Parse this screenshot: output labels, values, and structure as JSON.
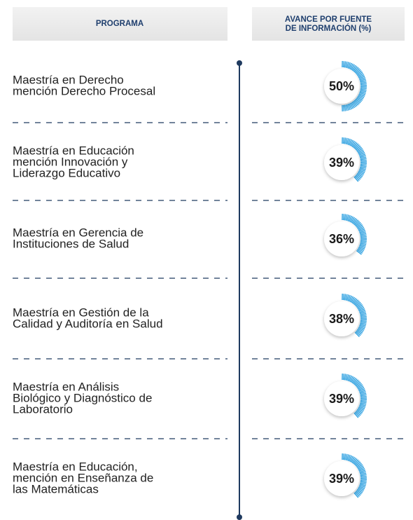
{
  "header": {
    "program": "PROGRAMA",
    "progress": [
      "AVANCE POR FUENTE",
      "DE INFORMACIÓN (%)"
    ]
  },
  "rows": [
    {
      "program": [
        "Maestría en Derecho",
        "mención Derecho Procesal"
      ],
      "value": 50,
      "value_label": "50%"
    },
    {
      "program": [
        "Maestría en Educación",
        "mención Innovación y",
        "Liderazgo Educativo"
      ],
      "value": 39,
      "value_label": "39%"
    },
    {
      "program": [
        "Maestría en Gerencia de",
        "Instituciones de Salud"
      ],
      "value": 36,
      "value_label": "36%"
    },
    {
      "program": [
        "Maestría en Gestión de la",
        "Calidad y Auditoría en Salud"
      ],
      "value": 38,
      "value_label": "38%"
    },
    {
      "program": [
        "Maestría en Análisis",
        "Biológico y Diagnóstico de",
        "Laboratorio"
      ],
      "value": 39,
      "value_label": "39%"
    },
    {
      "program": [
        "Maestría en Educación,",
        "mención en Enseñanza de",
        "las Matemáticas"
      ],
      "value": 39,
      "value_label": "39%"
    }
  ]
}
